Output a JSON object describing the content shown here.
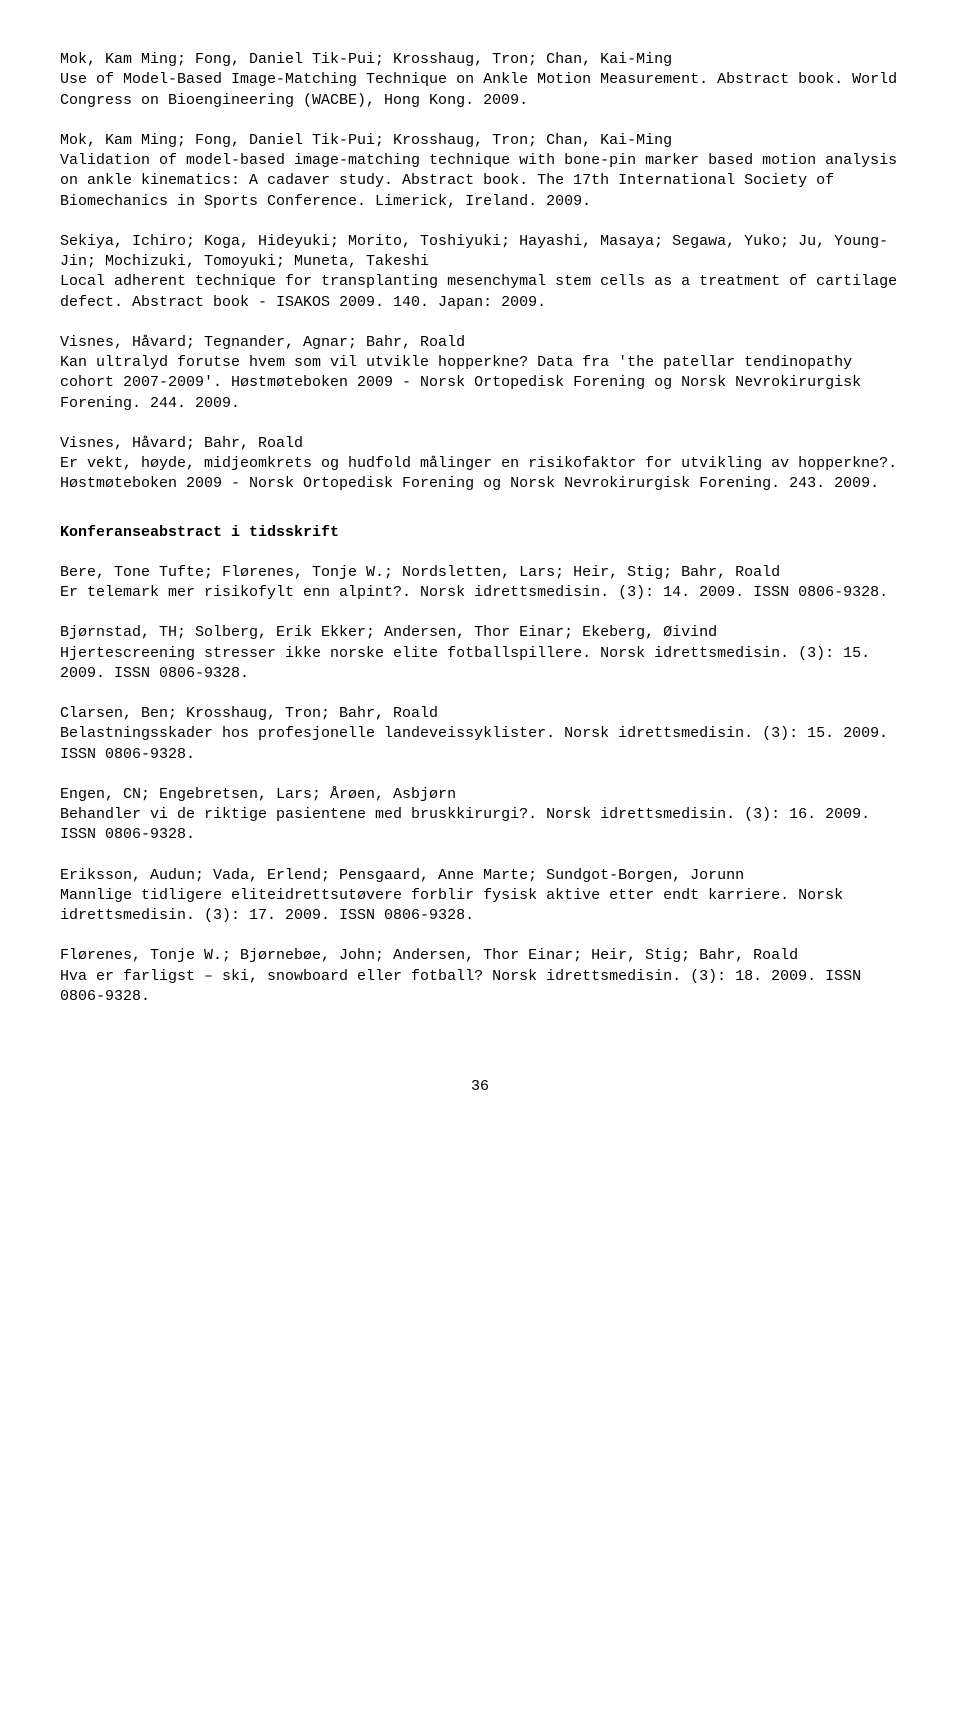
{
  "entries_top": [
    {
      "text": "Mok, Kam Ming; Fong, Daniel Tik-Pui; Krosshaug, Tron; Chan, Kai-Ming\nUse of Model-Based Image-Matching Technique on Ankle Motion Measurement. Abstract book. World Congress on Bioengineering (WACBE), Hong Kong. 2009."
    },
    {
      "text": "Mok, Kam Ming; Fong, Daniel Tik-Pui; Krosshaug, Tron; Chan, Kai-Ming\nValidation of model-based image-matching technique with bone-pin marker based motion analysis on ankle kinematics: A cadaver study. Abstract book. The 17th International Society of Biomechanics in Sports Conference. Limerick, Ireland. 2009."
    },
    {
      "text": "Sekiya, Ichiro; Koga, Hideyuki; Morito, Toshiyuki; Hayashi, Masaya; Segawa, Yuko; Ju, Young-Jin; Mochizuki, Tomoyuki; Muneta, Takeshi\nLocal adherent technique for transplanting mesenchymal stem cells as a treatment of cartilage defect. Abstract book - ISAKOS 2009. 140. Japan: 2009."
    },
    {
      "text": "Visnes, Håvard; Tegnander, Agnar; Bahr, Roald\nKan ultralyd forutse hvem som vil utvikle hopperkne? Data fra 'the patellar tendinopathy cohort 2007-2009'. Høstmøteboken 2009 - Norsk Ortopedisk Forening og Norsk Nevrokirurgisk Forening. 244. 2009."
    },
    {
      "text": "Visnes, Håvard; Bahr, Roald\nEr vekt, høyde, midjeomkrets og hudfold målinger en risikofaktor for utvikling av hopperkne?. Høstmøteboken 2009 - Norsk Ortopedisk Forening og Norsk Nevrokirurgisk Forening. 243. 2009."
    }
  ],
  "section_heading": "Konferanseabstract i tidsskrift",
  "entries_bottom": [
    {
      "text": "Bere, Tone Tufte; Flørenes, Tonje W.; Nordsletten, Lars; Heir, Stig; Bahr, Roald\nEr telemark mer risikofylt enn alpint?. Norsk idrettsmedisin. (3): 14. 2009. ISSN 0806-9328."
    },
    {
      "text": "Bjørnstad, TH; Solberg, Erik Ekker; Andersen, Thor Einar; Ekeberg, Øivind\nHjertescreening stresser ikke norske elite fotballspillere. Norsk idrettsmedisin. (3): 15. 2009. ISSN 0806-9328."
    },
    {
      "text": "Clarsen, Ben; Krosshaug, Tron; Bahr, Roald\nBelastningsskader hos profesjonelle landeveissyklister. Norsk idrettsmedisin. (3): 15. 2009. ISSN 0806-9328."
    },
    {
      "text": "Engen, CN; Engebretsen, Lars; Årøen, Asbjørn\nBehandler vi de riktige pasientene med bruskkirurgi?. Norsk idrettsmedisin. (3): 16. 2009. ISSN 0806-9328."
    },
    {
      "text": "Eriksson, Audun; Vada, Erlend; Pensgaard, Anne Marte; Sundgot-Borgen, Jorunn\nMannlige tidligere eliteidrettsutøvere forblir fysisk aktive etter endt karriere. Norsk idrettsmedisin. (3): 17. 2009. ISSN 0806-9328."
    },
    {
      "text": "Flørenes, Tonje W.; Bjørnebøe, John; Andersen, Thor Einar; Heir, Stig; Bahr, Roald\nHva er farligst – ski, snowboard eller fotball? Norsk idrettsmedisin. (3): 18. 2009. ISSN 0806-9328."
    }
  ],
  "page_number": "36"
}
